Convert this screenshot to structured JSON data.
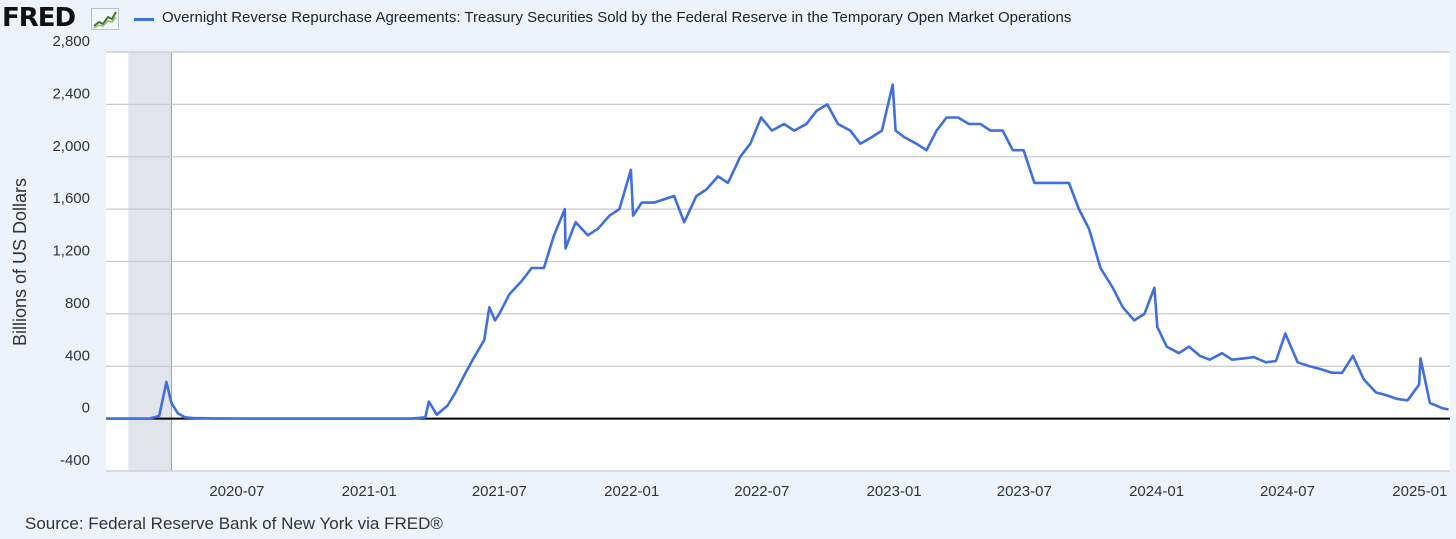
{
  "header": {
    "logo_text": "FRED",
    "icon_name": "line-chart-icon",
    "legend_label": "Overnight Reverse Repurchase Agreements: Treasury Securities Sold by the Federal Reserve in the Temporary Open Market Operations"
  },
  "source": "Source: Federal Reserve Bank of New York via FRED®",
  "chart_data": {
    "type": "line",
    "title": "Overnight Reverse Repurchase Agreements: Treasury Securities Sold by the Federal Reserve in the Temporary Open Market Operations",
    "xlabel": "",
    "ylabel": "Billions of US Dollars",
    "ylim": [
      -400,
      2800
    ],
    "yticks": [
      -400,
      0,
      400,
      800,
      1200,
      1600,
      2000,
      2400,
      2800
    ],
    "ytick_labels": [
      "-400",
      "0",
      "400",
      "800",
      "1,200",
      "1,600",
      "2,000",
      "2,400",
      "2,800"
    ],
    "xlim": [
      "2020-01-01",
      "2025-02-12"
    ],
    "xticks": [
      "2020-07",
      "2021-01",
      "2021-07",
      "2022-01",
      "2022-07",
      "2023-01",
      "2023-07",
      "2024-01",
      "2024-07",
      "2025-01"
    ],
    "recession_shading": [
      "2020-02",
      "2020-04"
    ],
    "colors": {
      "series": "#3f6fdc",
      "zero_line": "#000000",
      "recession": "#e1e4ea",
      "plot_bg": "#ffffff",
      "grid": "#c9c9c9"
    },
    "series": [
      {
        "name": "Overnight Reverse Repurchase Agreements",
        "x": [
          "2020-01-01",
          "2020-03-01",
          "2020-03-15",
          "2020-03-25",
          "2020-04-01",
          "2020-04-10",
          "2020-04-20",
          "2020-05-01",
          "2020-06-01",
          "2020-07-01",
          "2020-09-01",
          "2020-12-01",
          "2021-03-01",
          "2021-03-20",
          "2021-03-25",
          "2021-04-05",
          "2021-04-20",
          "2021-05-01",
          "2021-05-15",
          "2021-05-25",
          "2021-06-10",
          "2021-06-17",
          "2021-06-25",
          "2021-07-01",
          "2021-07-15",
          "2021-08-01",
          "2021-08-15",
          "2021-09-01",
          "2021-09-15",
          "2021-09-30",
          "2021-10-01",
          "2021-10-15",
          "2021-11-01",
          "2021-11-15",
          "2021-12-01",
          "2021-12-15",
          "2021-12-31",
          "2022-01-03",
          "2022-01-15",
          "2022-02-01",
          "2022-03-01",
          "2022-03-15",
          "2022-04-01",
          "2022-04-15",
          "2022-05-01",
          "2022-05-15",
          "2022-06-01",
          "2022-06-15",
          "2022-06-30",
          "2022-07-15",
          "2022-08-01",
          "2022-08-15",
          "2022-09-01",
          "2022-09-15",
          "2022-09-30",
          "2022-10-15",
          "2022-11-01",
          "2022-11-15",
          "2022-12-01",
          "2022-12-15",
          "2022-12-30",
          "2023-01-03",
          "2023-01-15",
          "2023-02-01",
          "2023-02-15",
          "2023-03-01",
          "2023-03-15",
          "2023-03-31",
          "2023-04-15",
          "2023-05-01",
          "2023-05-15",
          "2023-06-01",
          "2023-06-15",
          "2023-06-30",
          "2023-07-15",
          "2023-08-01",
          "2023-08-15",
          "2023-09-01",
          "2023-09-15",
          "2023-09-29",
          "2023-10-15",
          "2023-11-01",
          "2023-11-15",
          "2023-12-01",
          "2023-12-15",
          "2023-12-29",
          "2024-01-02",
          "2024-01-15",
          "2024-02-01",
          "2024-02-15",
          "2024-03-01",
          "2024-03-15",
          "2024-04-01",
          "2024-04-15",
          "2024-05-01",
          "2024-05-15",
          "2024-06-01",
          "2024-06-15",
          "2024-06-28",
          "2024-07-15",
          "2024-08-01",
          "2024-08-15",
          "2024-09-01",
          "2024-09-15",
          "2024-09-30",
          "2024-10-15",
          "2024-11-01",
          "2024-11-15",
          "2024-12-01",
          "2024-12-15",
          "2024-12-31",
          "2025-01-02",
          "2025-01-15",
          "2025-02-01",
          "2025-02-10"
        ],
        "values": [
          0,
          0,
          20,
          280,
          120,
          40,
          10,
          5,
          2,
          1,
          0,
          0,
          0,
          10,
          130,
          30,
          100,
          200,
          350,
          450,
          600,
          850,
          750,
          800,
          950,
          1050,
          1150,
          1150,
          1400,
          1600,
          1300,
          1500,
          1400,
          1450,
          1550,
          1600,
          1900,
          1550,
          1650,
          1650,
          1700,
          1500,
          1700,
          1750,
          1850,
          1800,
          2000,
          2100,
          2300,
          2200,
          2250,
          2200,
          2250,
          2350,
          2400,
          2250,
          2200,
          2100,
          2150,
          2200,
          2550,
          2200,
          2150,
          2100,
          2050,
          2200,
          2300,
          2300,
          2250,
          2250,
          2200,
          2200,
          2050,
          2050,
          1800,
          1800,
          1800,
          1800,
          1600,
          1450,
          1150,
          1000,
          850,
          750,
          800,
          1000,
          700,
          550,
          500,
          550,
          480,
          450,
          500,
          450,
          460,
          470,
          430,
          440,
          650,
          430,
          400,
          380,
          350,
          350,
          480,
          300,
          200,
          180,
          150,
          140,
          260,
          460,
          120,
          80,
          70
        ]
      }
    ]
  }
}
